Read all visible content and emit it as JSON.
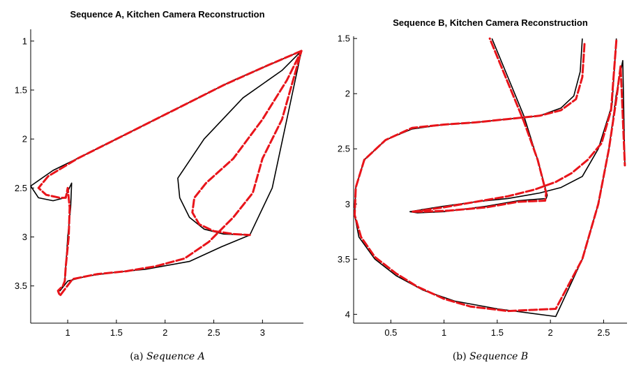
{
  "chart_data": [
    {
      "type": "line",
      "title": "Sequence A, Kitchen Camera Reconstruction",
      "caption_label": "(a)",
      "caption_text": "Sequence A",
      "xlim": [
        0.62,
        3.42
      ],
      "ylim": [
        3.88,
        0.88
      ],
      "y_inverted": true,
      "xticks": [
        1,
        1.5,
        2,
        2.5,
        3
      ],
      "xtick_labels": [
        "1",
        "1.5",
        "2",
        "2.5",
        "3"
      ],
      "yticks": [
        1,
        1.5,
        2,
        2.5,
        3,
        3.5
      ],
      "ytick_labels": [
        "1",
        "1.5",
        "2",
        "2.5",
        "3",
        "3.5"
      ],
      "grid": false,
      "series": [
        {
          "style": "solid",
          "color": "#000000",
          "x": [
            3.4,
            3.1,
            2.7,
            2.2,
            1.7,
            1.2,
            0.85,
            0.62,
            0.7,
            0.85,
            0.97,
            1.04,
            1.03,
            1.0,
            0.98,
            0.97,
            0.95,
            0.92,
            1.0,
            1.2,
            1.5,
            1.8,
            2.25,
            2.58,
            2.87,
            3.1,
            3.4,
            3.2,
            2.8,
            2.4,
            2.13,
            2.15,
            2.25,
            2.4,
            2.6,
            2.87
          ],
          "y": [
            1.1,
            1.23,
            1.4,
            1.65,
            1.9,
            2.15,
            2.32,
            2.48,
            2.6,
            2.63,
            2.6,
            2.45,
            2.7,
            3.0,
            3.3,
            3.45,
            3.5,
            3.55,
            3.45,
            3.4,
            3.36,
            3.33,
            3.25,
            3.1,
            2.98,
            2.5,
            1.1,
            1.3,
            1.58,
            2.0,
            2.4,
            2.6,
            2.8,
            2.92,
            2.97,
            2.98
          ]
        },
        {
          "style": "dashed",
          "color": "#ff0000",
          "x": [
            3.4,
            3.05,
            2.6,
            2.1,
            1.6,
            1.1,
            0.8,
            0.7,
            0.78,
            0.92,
            0.98,
            1.0,
            1.02,
            1.01,
            0.98,
            0.97,
            0.95,
            0.9,
            0.92,
            1.05,
            1.3,
            1.6,
            1.9,
            2.2,
            2.45,
            2.7,
            2.9,
            3.0,
            3.2,
            3.3,
            3.4,
            3.25,
            3.0,
            2.7,
            2.42,
            2.3,
            2.28,
            2.35,
            2.5,
            2.7,
            2.87
          ],
          "y": [
            1.1,
            1.25,
            1.45,
            1.7,
            1.95,
            2.2,
            2.38,
            2.5,
            2.57,
            2.6,
            2.6,
            2.5,
            2.7,
            3.0,
            3.3,
            3.45,
            3.5,
            3.55,
            3.6,
            3.43,
            3.38,
            3.35,
            3.3,
            3.22,
            3.05,
            2.8,
            2.55,
            2.2,
            1.8,
            1.45,
            1.1,
            1.4,
            1.8,
            2.2,
            2.45,
            2.6,
            2.75,
            2.87,
            2.94,
            2.97,
            2.98
          ]
        }
      ]
    },
    {
      "type": "line",
      "title": "Sequence B, Kitchen Camera Reconstruction",
      "caption_label": "(b)",
      "caption_text": "Sequence B",
      "xlim": [
        0.15,
        2.72
      ],
      "ylim": [
        4.08,
        1.48
      ],
      "y_inverted": true,
      "xticks": [
        0.5,
        1,
        1.5,
        2,
        2.5
      ],
      "xtick_labels": [
        "0.5",
        "1",
        "1.5",
        "2",
        "2.5"
      ],
      "yticks": [
        1.5,
        2,
        2.5,
        3,
        3.5,
        4
      ],
      "ytick_labels": [
        "1.5",
        "2",
        "2.5",
        "3",
        "3.5",
        "4"
      ],
      "grid": false,
      "series": [
        {
          "style": "solid",
          "color": "#000000",
          "x": [
            2.3,
            2.28,
            2.22,
            2.1,
            1.9,
            1.6,
            1.3,
            1.0,
            0.7,
            0.45,
            0.25,
            0.17,
            0.16,
            0.2,
            0.35,
            0.55,
            0.8,
            1.1,
            1.5,
            2.05,
            2.3,
            2.45,
            2.55,
            2.62,
            2.68,
            2.7
          ],
          "y": [
            1.5,
            1.8,
            2.02,
            2.13,
            2.2,
            2.23,
            2.26,
            2.28,
            2.32,
            2.42,
            2.6,
            2.85,
            3.1,
            3.3,
            3.5,
            3.65,
            3.78,
            3.88,
            3.95,
            4.02,
            3.5,
            3.0,
            2.5,
            2.0,
            1.7,
            2.65
          ]
        },
        {
          "style": "solid",
          "color": "#000000",
          "x": [
            2.62,
            2.58,
            2.45,
            2.3,
            2.1,
            1.9,
            1.6,
            1.3,
            1.0,
            0.8,
            0.68,
            0.75,
            1.0,
            1.4,
            1.7,
            1.96,
            1.97,
            1.88,
            1.75,
            1.6,
            1.45
          ],
          "y": [
            1.5,
            2.1,
            2.5,
            2.75,
            2.85,
            2.9,
            2.95,
            2.98,
            3.02,
            3.05,
            3.07,
            3.08,
            3.07,
            3.02,
            2.97,
            2.95,
            2.92,
            2.6,
            2.2,
            1.85,
            1.5
          ]
        },
        {
          "style": "dashed",
          "color": "#ff0000",
          "x": [
            2.32,
            2.3,
            2.24,
            2.1,
            1.9,
            1.6,
            1.3,
            1.0,
            0.7,
            0.45,
            0.25,
            0.17,
            0.16,
            0.22,
            0.35,
            0.55,
            0.75,
            1.0,
            1.25,
            1.6,
            2.05,
            2.3,
            2.45,
            2.55,
            2.62,
            2.66,
            2.7
          ],
          "y": [
            1.55,
            1.85,
            2.05,
            2.15,
            2.2,
            2.23,
            2.26,
            2.28,
            2.31,
            2.42,
            2.6,
            2.85,
            3.1,
            3.3,
            3.48,
            3.63,
            3.75,
            3.86,
            3.93,
            3.97,
            3.95,
            3.5,
            3.0,
            2.5,
            2.05,
            1.75,
            2.65
          ]
        },
        {
          "style": "dashed",
          "color": "#ff0000",
          "x": [
            2.62,
            2.57,
            2.48,
            2.35,
            2.2,
            2.05,
            1.85,
            1.6,
            1.3,
            1.0,
            0.78,
            0.7,
            0.8,
            1.05,
            1.4,
            1.7,
            1.95,
            1.96,
            1.88,
            1.75,
            1.6,
            1.43
          ],
          "y": [
            1.52,
            2.15,
            2.45,
            2.6,
            2.72,
            2.8,
            2.87,
            2.93,
            2.98,
            3.03,
            3.06,
            3.07,
            3.07,
            3.06,
            3.03,
            2.98,
            2.97,
            2.9,
            2.6,
            2.25,
            1.9,
            1.5
          ]
        }
      ]
    }
  ]
}
